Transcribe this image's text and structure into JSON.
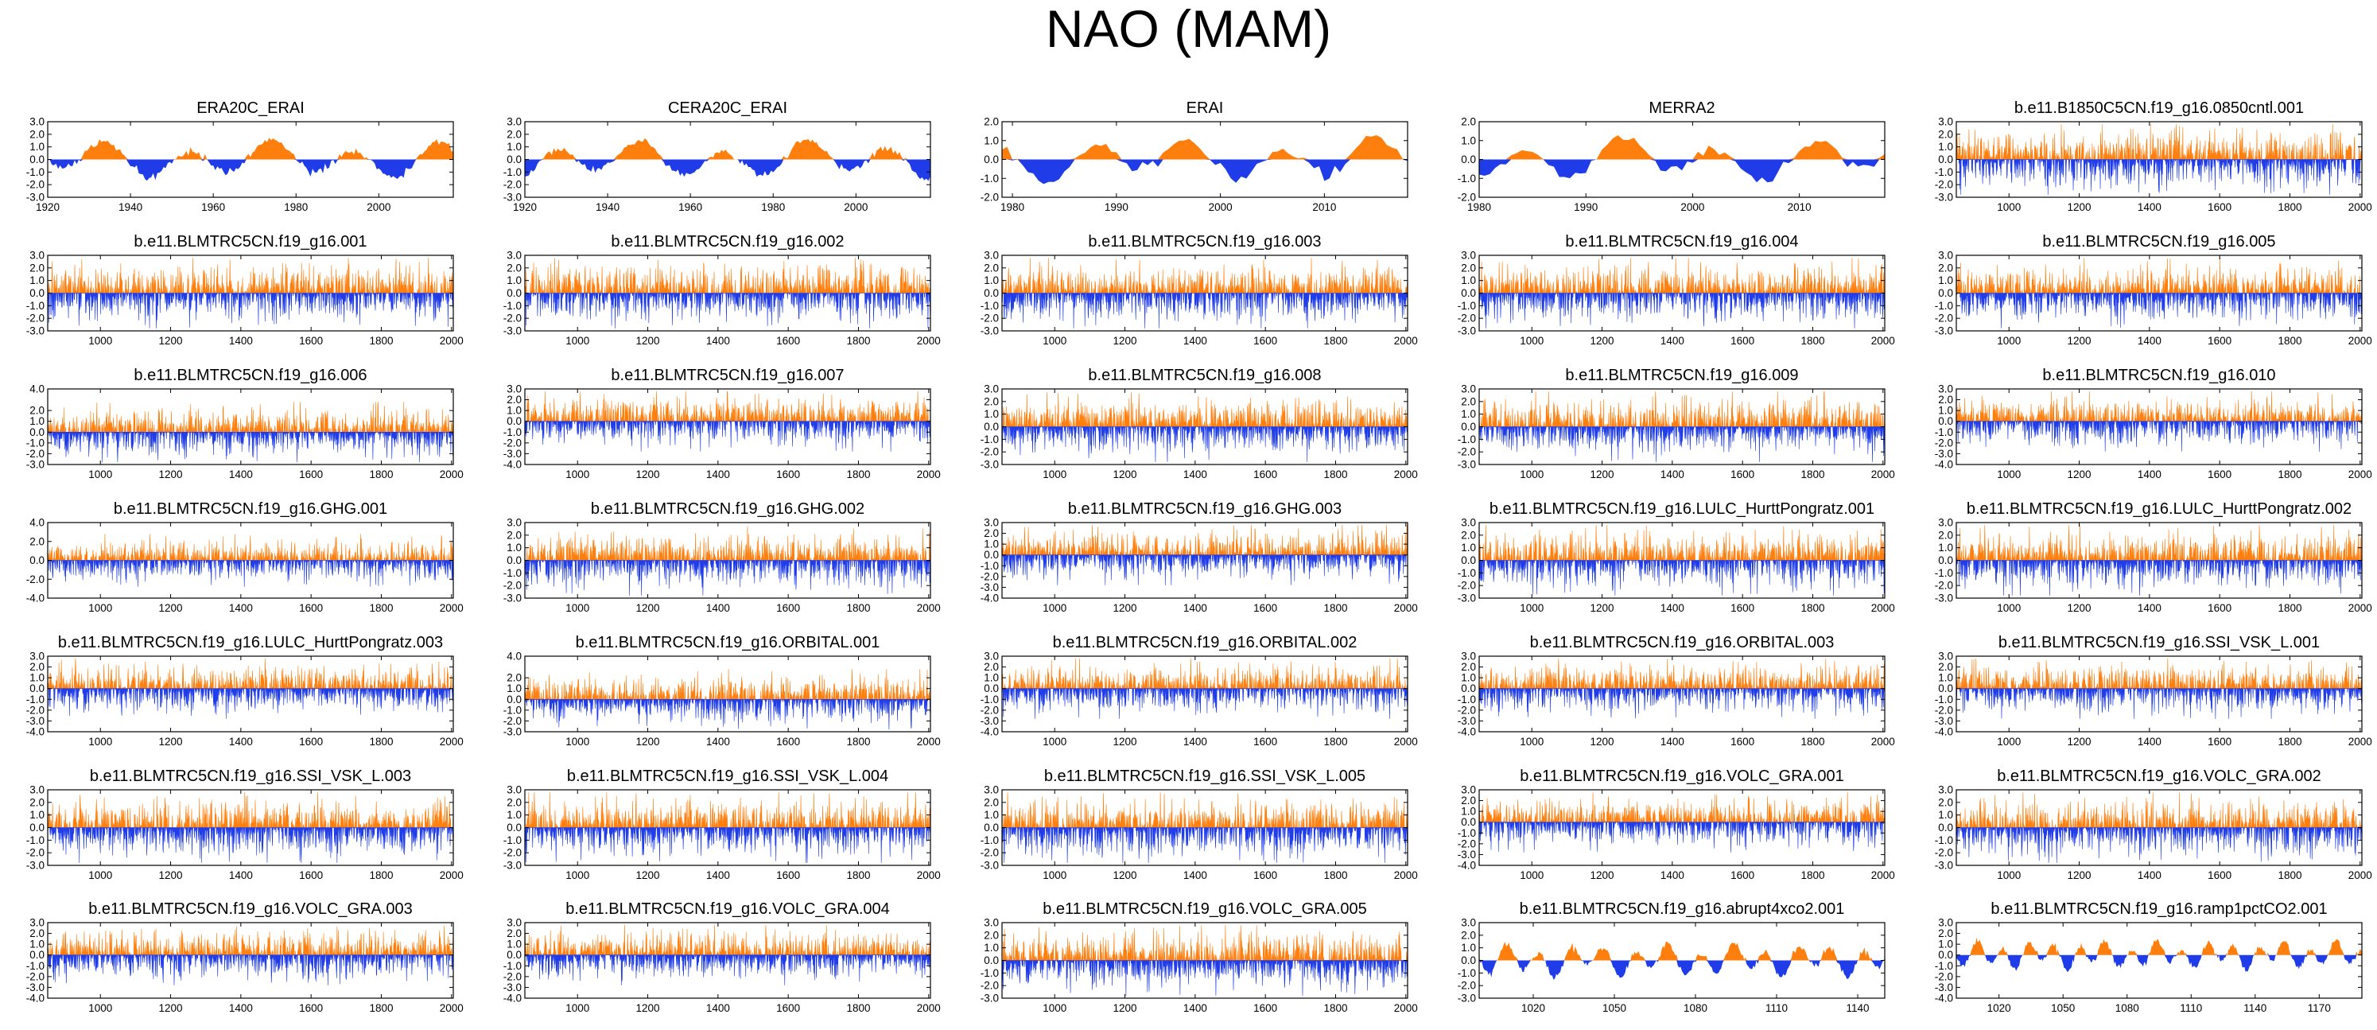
{
  "title": "NAO (MAM)",
  "colors": {
    "positive": "#ff7f0e",
    "negative": "#1f3ce8",
    "axis": "#000000"
  },
  "chart_data": [
    {
      "type": "area",
      "title": "ERA20C_ERAI",
      "xlim": [
        1920,
        2018
      ],
      "ylim": [
        -3,
        3
      ],
      "yticks": [
        "3.0",
        "2.0",
        "1.0",
        "0.0",
        "-1.0",
        "-2.0",
        "-3.0"
      ],
      "xticks": [
        "1920",
        "1940",
        "1960",
        "1980",
        "2000"
      ],
      "series": {
        "kind": "annual",
        "seed": 1,
        "amp": 1.1,
        "amp2": 0.5,
        "period": 20
      }
    },
    {
      "type": "area",
      "title": "CERA20C_ERAI",
      "xlim": [
        1920,
        2018
      ],
      "ylim": [
        -3,
        3
      ],
      "yticks": [
        "3.0",
        "2.0",
        "1.0",
        "0.0",
        "-1.0",
        "-2.0",
        "-3.0"
      ],
      "xticks": [
        "1920",
        "1940",
        "1960",
        "1980",
        "2000"
      ],
      "series": {
        "kind": "annual",
        "seed": 2,
        "amp": 1.1,
        "amp2": 0.5,
        "period": 20
      }
    },
    {
      "type": "area",
      "title": "ERAI",
      "xlim": [
        1979,
        2018
      ],
      "ylim": [
        -2,
        2
      ],
      "yticks": [
        "2.0",
        "1.0",
        "0.0",
        "-1.0",
        "-2.0"
      ],
      "xticks": [
        "1980",
        "1990",
        "2000",
        "2010"
      ],
      "series": {
        "kind": "annual",
        "seed": 3,
        "amp": 0.8,
        "amp2": 0.4,
        "period": 9
      }
    },
    {
      "type": "area",
      "title": "MERRA2",
      "xlim": [
        1980,
        2018
      ],
      "ylim": [
        -2,
        2
      ],
      "yticks": [
        "2.0",
        "1.0",
        "0.0",
        "-1.0",
        "-2.0"
      ],
      "xticks": [
        "1980",
        "1990",
        "2000",
        "2010"
      ],
      "series": {
        "kind": "annual",
        "seed": 4,
        "amp": 0.8,
        "amp2": 0.4,
        "period": 9
      }
    },
    {
      "type": "area",
      "title": "b.e11.B1850C5CN.f19_g16.0850cntl.001",
      "xlim": [
        850,
        2005
      ],
      "ylim": [
        -3,
        3
      ],
      "yticks": [
        "3.0",
        "2.0",
        "1.0",
        "0.0",
        "-1.0",
        "-2.0",
        "-3.0"
      ],
      "xticks": [
        "1000",
        "1200",
        "1400",
        "1600",
        "1800",
        "2000"
      ],
      "series": {
        "kind": "dense",
        "seed": 5,
        "amp": 1.0
      }
    },
    {
      "type": "area",
      "title": "b.e11.BLMTRC5CN.f19_g16.001",
      "xlim": [
        850,
        2005
      ],
      "ylim": [
        -3,
        3
      ],
      "yticks": [
        "3.0",
        "2.0",
        "1.0",
        "0.0",
        "-1.0",
        "-2.0",
        "-3.0"
      ],
      "xticks": [
        "1000",
        "1200",
        "1400",
        "1600",
        "1800",
        "2000"
      ],
      "series": {
        "kind": "dense",
        "seed": 6,
        "amp": 1.0
      }
    },
    {
      "type": "area",
      "title": "b.e11.BLMTRC5CN.f19_g16.002",
      "xlim": [
        850,
        2005
      ],
      "ylim": [
        -3,
        3
      ],
      "yticks": [
        "3.0",
        "2.0",
        "1.0",
        "0.0",
        "-1.0",
        "-2.0",
        "-3.0"
      ],
      "xticks": [
        "1000",
        "1200",
        "1400",
        "1600",
        "1800",
        "2000"
      ],
      "series": {
        "kind": "dense",
        "seed": 7,
        "amp": 1.0
      }
    },
    {
      "type": "area",
      "title": "b.e11.BLMTRC5CN.f19_g16.003",
      "xlim": [
        850,
        2005
      ],
      "ylim": [
        -3,
        3
      ],
      "yticks": [
        "3.0",
        "2.0",
        "1.0",
        "0.0",
        "-1.0",
        "-2.0",
        "-3.0"
      ],
      "xticks": [
        "1000",
        "1200",
        "1400",
        "1600",
        "1800",
        "2000"
      ],
      "series": {
        "kind": "dense",
        "seed": 8,
        "amp": 1.0
      }
    },
    {
      "type": "area",
      "title": "b.e11.BLMTRC5CN.f19_g16.004",
      "xlim": [
        850,
        2005
      ],
      "ylim": [
        -3,
        3
      ],
      "yticks": [
        "3.0",
        "2.0",
        "1.0",
        "0.0",
        "-1.0",
        "-2.0",
        "-3.0"
      ],
      "xticks": [
        "1000",
        "1200",
        "1400",
        "1600",
        "1800",
        "2000"
      ],
      "series": {
        "kind": "dense",
        "seed": 9,
        "amp": 1.0
      }
    },
    {
      "type": "area",
      "title": "b.e11.BLMTRC5CN.f19_g16.005",
      "xlim": [
        850,
        2005
      ],
      "ylim": [
        -3,
        3
      ],
      "yticks": [
        "3.0",
        "2.0",
        "1.0",
        "0.0",
        "-1.0",
        "-2.0",
        "-3.0"
      ],
      "xticks": [
        "1000",
        "1200",
        "1400",
        "1600",
        "1800",
        "2000"
      ],
      "series": {
        "kind": "dense",
        "seed": 10,
        "amp": 1.0
      }
    },
    {
      "type": "area",
      "title": "b.e11.BLMTRC5CN.f19_g16.006",
      "xlim": [
        850,
        2005
      ],
      "ylim": [
        -3,
        4
      ],
      "yticks": [
        "4.0",
        "2.0",
        "1.0",
        "0.0",
        "-1.0",
        "-2.0",
        "-3.0"
      ],
      "xticks": [
        "1000",
        "1200",
        "1400",
        "1600",
        "1800",
        "2000"
      ],
      "series": {
        "kind": "dense",
        "seed": 11,
        "amp": 1.0
      }
    },
    {
      "type": "area",
      "title": "b.e11.BLMTRC5CN.f19_g16.007",
      "xlim": [
        850,
        2005
      ],
      "ylim": [
        -4,
        3
      ],
      "yticks": [
        "3.0",
        "2.0",
        "1.0",
        "0.0",
        "-1.0",
        "-2.0",
        "-3.0",
        "-4.0"
      ],
      "xticks": [
        "1000",
        "1200",
        "1400",
        "1600",
        "1800",
        "2000"
      ],
      "series": {
        "kind": "dense",
        "seed": 12,
        "amp": 1.0
      }
    },
    {
      "type": "area",
      "title": "b.e11.BLMTRC5CN.f19_g16.008",
      "xlim": [
        850,
        2005
      ],
      "ylim": [
        -3,
        3
      ],
      "yticks": [
        "3.0",
        "2.0",
        "1.0",
        "0.0",
        "-1.0",
        "-2.0",
        "-3.0"
      ],
      "xticks": [
        "1000",
        "1200",
        "1400",
        "1600",
        "1800",
        "2000"
      ],
      "series": {
        "kind": "dense",
        "seed": 13,
        "amp": 1.0
      }
    },
    {
      "type": "area",
      "title": "b.e11.BLMTRC5CN.f19_g16.009",
      "xlim": [
        850,
        2005
      ],
      "ylim": [
        -3,
        3
      ],
      "yticks": [
        "3.0",
        "2.0",
        "1.0",
        "0.0",
        "-1.0",
        "-2.0",
        "-3.0"
      ],
      "xticks": [
        "1000",
        "1200",
        "1400",
        "1600",
        "1800",
        "2000"
      ],
      "series": {
        "kind": "dense",
        "seed": 14,
        "amp": 1.0
      }
    },
    {
      "type": "area",
      "title": "b.e11.BLMTRC5CN.f19_g16.010",
      "xlim": [
        850,
        2005
      ],
      "ylim": [
        -4,
        3
      ],
      "yticks": [
        "3.0",
        "2.0",
        "1.0",
        "0.0",
        "-1.0",
        "-2.0",
        "-3.0",
        "-4.0"
      ],
      "xticks": [
        "1000",
        "1200",
        "1400",
        "1600",
        "1800",
        "2000"
      ],
      "series": {
        "kind": "dense",
        "seed": 15,
        "amp": 1.0
      }
    },
    {
      "type": "area",
      "title": "b.e11.BLMTRC5CN.f19_g16.GHG.001",
      "xlim": [
        850,
        2005
      ],
      "ylim": [
        -4,
        4
      ],
      "yticks": [
        "4.0",
        "2.0",
        "0.0",
        "-2.0",
        "-4.0"
      ],
      "xticks": [
        "1000",
        "1200",
        "1400",
        "1600",
        "1800",
        "2000"
      ],
      "series": {
        "kind": "dense",
        "seed": 16,
        "amp": 1.0
      }
    },
    {
      "type": "area",
      "title": "b.e11.BLMTRC5CN.f19_g16.GHG.002",
      "xlim": [
        850,
        2005
      ],
      "ylim": [
        -3,
        3
      ],
      "yticks": [
        "3.0",
        "2.0",
        "1.0",
        "0.0",
        "-1.0",
        "-2.0",
        "-3.0"
      ],
      "xticks": [
        "1000",
        "1200",
        "1400",
        "1600",
        "1800",
        "2000"
      ],
      "series": {
        "kind": "dense",
        "seed": 17,
        "amp": 1.0
      }
    },
    {
      "type": "area",
      "title": "b.e11.BLMTRC5CN.f19_g16.GHG.003",
      "xlim": [
        850,
        2005
      ],
      "ylim": [
        -4,
        3
      ],
      "yticks": [
        "3.0",
        "2.0",
        "1.0",
        "0.0",
        "-1.0",
        "-2.0",
        "-3.0",
        "-4.0"
      ],
      "xticks": [
        "1000",
        "1200",
        "1400",
        "1600",
        "1800",
        "2000"
      ],
      "series": {
        "kind": "dense",
        "seed": 18,
        "amp": 1.0
      }
    },
    {
      "type": "area",
      "title": "b.e11.BLMTRC5CN.f19_g16.LULC_HurttPongratz.001",
      "xlim": [
        850,
        2005
      ],
      "ylim": [
        -3,
        3
      ],
      "yticks": [
        "3.0",
        "2.0",
        "1.0",
        "0.0",
        "-1.0",
        "-2.0",
        "-3.0"
      ],
      "xticks": [
        "1000",
        "1200",
        "1400",
        "1600",
        "1800",
        "2000"
      ],
      "series": {
        "kind": "dense",
        "seed": 19,
        "amp": 1.0
      }
    },
    {
      "type": "area",
      "title": "b.e11.BLMTRC5CN.f19_g16.LULC_HurttPongratz.002",
      "xlim": [
        850,
        2005
      ],
      "ylim": [
        -3,
        3
      ],
      "yticks": [
        "3.0",
        "2.0",
        "1.0",
        "0.0",
        "-1.0",
        "-2.0",
        "-3.0"
      ],
      "xticks": [
        "1000",
        "1200",
        "1400",
        "1600",
        "1800",
        "2000"
      ],
      "series": {
        "kind": "dense",
        "seed": 20,
        "amp": 1.0
      }
    },
    {
      "type": "area",
      "title": "b.e11.BLMTRC5CN.f19_g16.LULC_HurttPongratz.003",
      "xlim": [
        850,
        2005
      ],
      "ylim": [
        -4,
        3
      ],
      "yticks": [
        "3.0",
        "2.0",
        "1.0",
        "0.0",
        "-1.0",
        "-2.0",
        "-3.0",
        "-4.0"
      ],
      "xticks": [
        "1000",
        "1200",
        "1400",
        "1600",
        "1800",
        "2000"
      ],
      "series": {
        "kind": "dense",
        "seed": 21,
        "amp": 1.0
      }
    },
    {
      "type": "area",
      "title": "b.e11.BLMTRC5CN.f19_g16.ORBITAL.001",
      "xlim": [
        850,
        2005
      ],
      "ylim": [
        -3,
        4
      ],
      "yticks": [
        "4.0",
        "2.0",
        "1.0",
        "0.0",
        "-1.0",
        "-2.0",
        "-3.0"
      ],
      "xticks": [
        "1000",
        "1200",
        "1400",
        "1600",
        "1800",
        "2000"
      ],
      "series": {
        "kind": "dense",
        "seed": 22,
        "amp": 1.0
      }
    },
    {
      "type": "area",
      "title": "b.e11.BLMTRC5CN.f19_g16.ORBITAL.002",
      "xlim": [
        850,
        2005
      ],
      "ylim": [
        -4,
        3
      ],
      "yticks": [
        "3.0",
        "2.0",
        "1.0",
        "0.0",
        "-1.0",
        "-2.0",
        "-3.0",
        "-4.0"
      ],
      "xticks": [
        "1000",
        "1200",
        "1400",
        "1600",
        "1800",
        "2000"
      ],
      "series": {
        "kind": "dense",
        "seed": 23,
        "amp": 1.0
      }
    },
    {
      "type": "area",
      "title": "b.e11.BLMTRC5CN.f19_g16.ORBITAL.003",
      "xlim": [
        850,
        2005
      ],
      "ylim": [
        -4,
        3
      ],
      "yticks": [
        "3.0",
        "2.0",
        "1.0",
        "0.0",
        "-1.0",
        "-2.0",
        "-3.0",
        "-4.0"
      ],
      "xticks": [
        "1000",
        "1200",
        "1400",
        "1600",
        "1800",
        "2000"
      ],
      "series": {
        "kind": "dense",
        "seed": 24,
        "amp": 1.0
      }
    },
    {
      "type": "area",
      "title": "b.e11.BLMTRC5CN.f19_g16.SSI_VSK_L.001",
      "xlim": [
        850,
        2005
      ],
      "ylim": [
        -4,
        3
      ],
      "yticks": [
        "3.0",
        "2.0",
        "1.0",
        "0.0",
        "-1.0",
        "-2.0",
        "-3.0",
        "-4.0"
      ],
      "xticks": [
        "1000",
        "1200",
        "1400",
        "1600",
        "1800",
        "2000"
      ],
      "series": {
        "kind": "dense",
        "seed": 25,
        "amp": 1.0
      }
    },
    {
      "type": "area",
      "title": "b.e11.BLMTRC5CN.f19_g16.SSI_VSK_L.003",
      "xlim": [
        850,
        2005
      ],
      "ylim": [
        -3,
        3
      ],
      "yticks": [
        "3.0",
        "2.0",
        "1.0",
        "0.0",
        "-1.0",
        "-2.0",
        "-3.0"
      ],
      "xticks": [
        "1000",
        "1200",
        "1400",
        "1600",
        "1800",
        "2000"
      ],
      "series": {
        "kind": "dense",
        "seed": 26,
        "amp": 1.0
      }
    },
    {
      "type": "area",
      "title": "b.e11.BLMTRC5CN.f19_g16.SSI_VSK_L.004",
      "xlim": [
        850,
        2005
      ],
      "ylim": [
        -3,
        3
      ],
      "yticks": [
        "3.0",
        "2.0",
        "1.0",
        "0.0",
        "-1.0",
        "-2.0",
        "-3.0"
      ],
      "xticks": [
        "1000",
        "1200",
        "1400",
        "1600",
        "1800",
        "2000"
      ],
      "series": {
        "kind": "dense",
        "seed": 27,
        "amp": 1.0
      }
    },
    {
      "type": "area",
      "title": "b.e11.BLMTRC5CN.f19_g16.SSI_VSK_L.005",
      "xlim": [
        850,
        2005
      ],
      "ylim": [
        -3,
        3
      ],
      "yticks": [
        "3.0",
        "2.0",
        "1.0",
        "0.0",
        "-1.0",
        "-2.0",
        "-3.0"
      ],
      "xticks": [
        "1000",
        "1200",
        "1400",
        "1600",
        "1800",
        "2000"
      ],
      "series": {
        "kind": "dense",
        "seed": 28,
        "amp": 1.0
      }
    },
    {
      "type": "area",
      "title": "b.e11.BLMTRC5CN.f19_g16.VOLC_GRA.001",
      "xlim": [
        850,
        2005
      ],
      "ylim": [
        -4,
        3
      ],
      "yticks": [
        "3.0",
        "2.0",
        "1.0",
        "0.0",
        "-1.0",
        "-2.0",
        "-3.0",
        "-4.0"
      ],
      "xticks": [
        "1000",
        "1200",
        "1400",
        "1600",
        "1800",
        "2000"
      ],
      "series": {
        "kind": "dense",
        "seed": 29,
        "amp": 1.0
      }
    },
    {
      "type": "area",
      "title": "b.e11.BLMTRC5CN.f19_g16.VOLC_GRA.002",
      "xlim": [
        850,
        2005
      ],
      "ylim": [
        -3,
        3
      ],
      "yticks": [
        "3.0",
        "2.0",
        "1.0",
        "0.0",
        "-1.0",
        "-2.0",
        "-3.0"
      ],
      "xticks": [
        "1000",
        "1200",
        "1400",
        "1600",
        "1800",
        "2000"
      ],
      "series": {
        "kind": "dense",
        "seed": 30,
        "amp": 1.0
      }
    },
    {
      "type": "area",
      "title": "b.e11.BLMTRC5CN.f19_g16.VOLC_GRA.003",
      "xlim": [
        850,
        2005
      ],
      "ylim": [
        -4,
        3
      ],
      "yticks": [
        "3.0",
        "2.0",
        "1.0",
        "0.0",
        "-1.0",
        "-2.0",
        "-3.0",
        "-4.0"
      ],
      "xticks": [
        "1000",
        "1200",
        "1400",
        "1600",
        "1800",
        "2000"
      ],
      "series": {
        "kind": "dense",
        "seed": 31,
        "amp": 1.0
      }
    },
    {
      "type": "area",
      "title": "b.e11.BLMTRC5CN.f19_g16.VOLC_GRA.004",
      "xlim": [
        850,
        2005
      ],
      "ylim": [
        -4,
        3
      ],
      "yticks": [
        "3.0",
        "2.0",
        "1.0",
        "0.0",
        "-1.0",
        "-2.0",
        "-3.0",
        "-4.0"
      ],
      "xticks": [
        "1000",
        "1200",
        "1400",
        "1600",
        "1800",
        "2000"
      ],
      "series": {
        "kind": "dense",
        "seed": 32,
        "amp": 1.0
      }
    },
    {
      "type": "area",
      "title": "b.e11.BLMTRC5CN.f19_g16.VOLC_GRA.005",
      "xlim": [
        850,
        2005
      ],
      "ylim": [
        -3,
        3
      ],
      "yticks": [
        "3.0",
        "2.0",
        "1.0",
        "0.0",
        "-1.0",
        "-2.0",
        "-3.0"
      ],
      "xticks": [
        "1000",
        "1200",
        "1400",
        "1600",
        "1800",
        "2000"
      ],
      "series": {
        "kind": "dense",
        "seed": 33,
        "amp": 1.0
      }
    },
    {
      "type": "area",
      "title": "b.e11.BLMTRC5CN.f19_g16.abrupt4xco2.001",
      "xlim": [
        1000,
        1150
      ],
      "ylim": [
        -3,
        3
      ],
      "yticks": [
        "3.0",
        "2.0",
        "1.0",
        "0.0",
        "-1.0",
        "-2.0",
        "-3.0"
      ],
      "xticks": [
        "1020",
        "1050",
        "1080",
        "1110",
        "1140"
      ],
      "series": {
        "kind": "annual",
        "seed": 34,
        "amp": 0.9,
        "amp2": 0.5,
        "period": 12
      }
    },
    {
      "type": "area",
      "title": "b.e11.BLMTRC5CN.f19_g16.ramp1pctCO2.001",
      "xlim": [
        1000,
        1190
      ],
      "ylim": [
        -4,
        3
      ],
      "yticks": [
        "3.0",
        "2.0",
        "1.0",
        "0.0",
        "-1.0",
        "-2.0",
        "-3.0",
        "-4.0"
      ],
      "xticks": [
        "1020",
        "1050",
        "1080",
        "1110",
        "1140",
        "1170"
      ],
      "series": {
        "kind": "annual",
        "seed": 35,
        "amp": 0.9,
        "amp2": 0.5,
        "period": 12
      }
    }
  ]
}
